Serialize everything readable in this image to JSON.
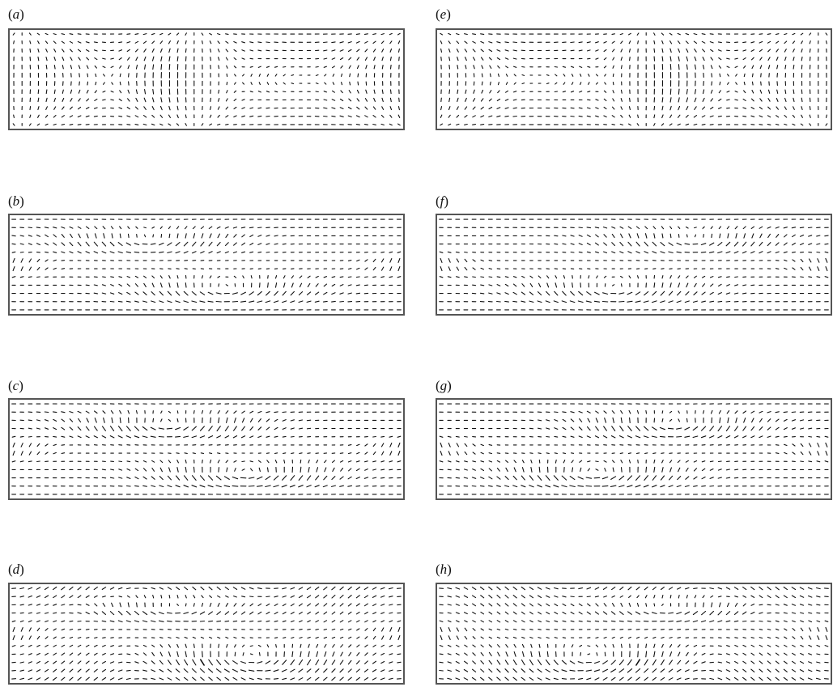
{
  "figure": {
    "panels": [
      {
        "id": "a",
        "label_open": "(",
        "label_letter": "a",
        "label_close": ")",
        "pattern": "a"
      },
      {
        "id": "b",
        "label_open": "(",
        "label_letter": "b",
        "label_close": ")",
        "pattern": "b"
      },
      {
        "id": "c",
        "label_open": "(",
        "label_letter": "c",
        "label_close": ")",
        "pattern": "c"
      },
      {
        "id": "d",
        "label_open": "(",
        "label_letter": "d",
        "label_close": ")",
        "pattern": "d"
      },
      {
        "id": "e",
        "label_open": "(",
        "label_letter": "e",
        "label_close": ")",
        "pattern": "a",
        "mirrored": true
      },
      {
        "id": "f",
        "label_open": "(",
        "label_letter": "f",
        "label_close": ")",
        "pattern": "b",
        "mirrored": true
      },
      {
        "id": "g",
        "label_open": "(",
        "label_letter": "g",
        "label_close": ")",
        "pattern": "c",
        "mirrored": true
      },
      {
        "id": "h",
        "label_open": "(",
        "label_letter": "h",
        "label_close": ")",
        "pattern": "d",
        "mirrored": true
      }
    ],
    "vector_color": "#111111",
    "frame_color": "#555555"
  }
}
